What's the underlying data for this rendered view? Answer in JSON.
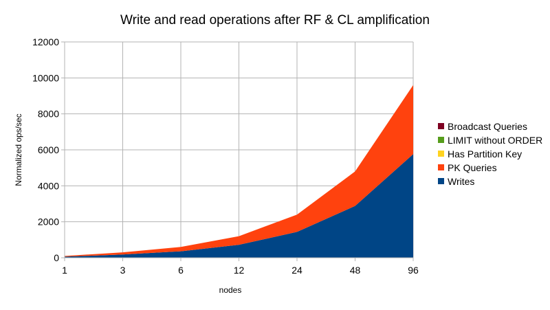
{
  "chart_data": {
    "type": "area",
    "stacked": true,
    "title": "Write and read operations after RF & CL amplification",
    "xlabel": "nodes",
    "ylabel": "Normalized ops/sec",
    "categories": [
      "1",
      "3",
      "6",
      "12",
      "24",
      "48",
      "96"
    ],
    "ylim": [
      0,
      12000
    ],
    "yticks": [
      0,
      2000,
      4000,
      6000,
      8000,
      10000,
      12000
    ],
    "grid": true,
    "legend_position": "right",
    "series": [
      {
        "name": "Writes",
        "color": "#004586",
        "values": [
          60,
          180,
          360,
          720,
          1440,
          2880,
          5760
        ]
      },
      {
        "name": "PK Queries",
        "color": "#ff420e",
        "values": [
          40,
          120,
          240,
          480,
          960,
          1920,
          3840
        ]
      },
      {
        "name": "Has Partition Key",
        "color": "#ffd320",
        "values": [
          0,
          0,
          0,
          0,
          0,
          0,
          0
        ]
      },
      {
        "name": "LIMIT without ORDER",
        "color": "#579d1c",
        "values": [
          0,
          0,
          0,
          0,
          0,
          0,
          0
        ]
      },
      {
        "name": "Broadcast Queries",
        "color": "#7e0021",
        "values": [
          0,
          0,
          0,
          0,
          0,
          0,
          0
        ]
      }
    ]
  }
}
